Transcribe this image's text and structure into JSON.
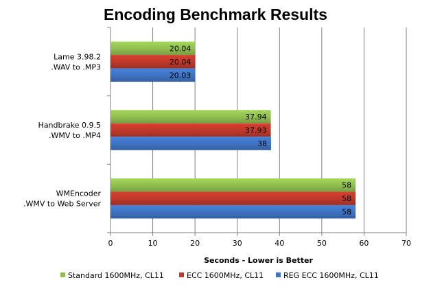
{
  "chart_data": {
    "type": "bar",
    "orientation": "horizontal",
    "title": "Encoding Benchmark Results",
    "xlabel": "Seconds - Lower is Better",
    "ylabel": "",
    "xlim": [
      0,
      70
    ],
    "x_ticks": [
      0,
      10,
      20,
      30,
      40,
      50,
      60,
      70
    ],
    "grid": true,
    "legend_position": "bottom",
    "categories": [
      [
        "Lame 3.98.2",
        ".WAV to .MP3"
      ],
      [
        "Handbrake 0.9.5",
        ".WMV to .MP4"
      ],
      [
        "WMEncoder",
        ".WMV to Web Server"
      ]
    ],
    "series": [
      {
        "name": "Standard 1600MHz, CL11",
        "color": "#92c050",
        "values": [
          20.04,
          37.94,
          58
        ]
      },
      {
        "name": "ECC 1600MHz, CL11",
        "color": "#c0392b",
        "values": [
          20.04,
          37.93,
          58
        ]
      },
      {
        "name": "REG ECC 1600MHz, CL11",
        "color": "#3f74c4",
        "values": [
          20.03,
          38,
          58
        ]
      }
    ]
  }
}
